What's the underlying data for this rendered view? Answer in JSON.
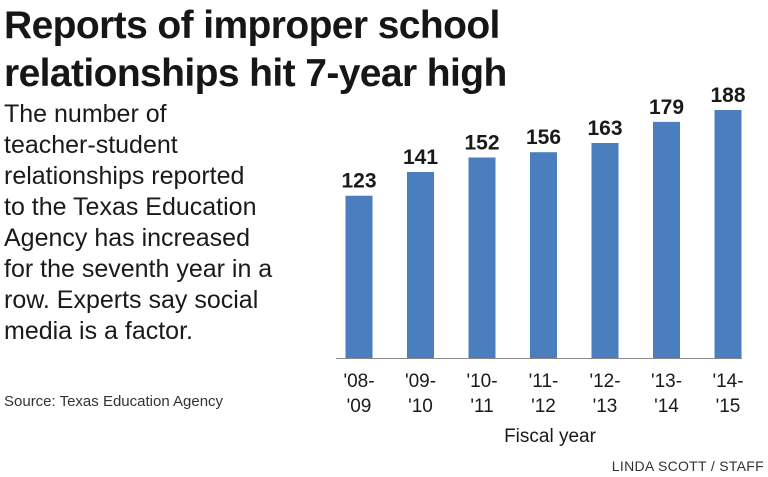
{
  "title_lines": [
    "Reports of improper school",
    "relationships hit 7-year high"
  ],
  "description_lines": [
    "The number of",
    "teacher-student",
    "relationships reported",
    "to the Texas Education",
    "Agency has increased",
    "for the seventh year in a",
    "row. Experts say social",
    "media is a factor."
  ],
  "source": "Source: Texas Education Agency",
  "credit": "LINDA SCOTT / STAFF",
  "chart_data": {
    "type": "bar",
    "categories": [
      [
        "'08-",
        "'09"
      ],
      [
        "'09-",
        "'10"
      ],
      [
        "'10-",
        "'11"
      ],
      [
        "'11-",
        "'12"
      ],
      [
        "'12-",
        "'13"
      ],
      [
        "'13-",
        "'14"
      ],
      [
        "'14-",
        "'15"
      ]
    ],
    "values": [
      123,
      141,
      152,
      156,
      163,
      179,
      188
    ],
    "xlabel": "Fiscal year",
    "ylabel": "",
    "ylim": [
      0,
      188
    ],
    "grid": false,
    "bar_color": "#4a7ebf"
  }
}
